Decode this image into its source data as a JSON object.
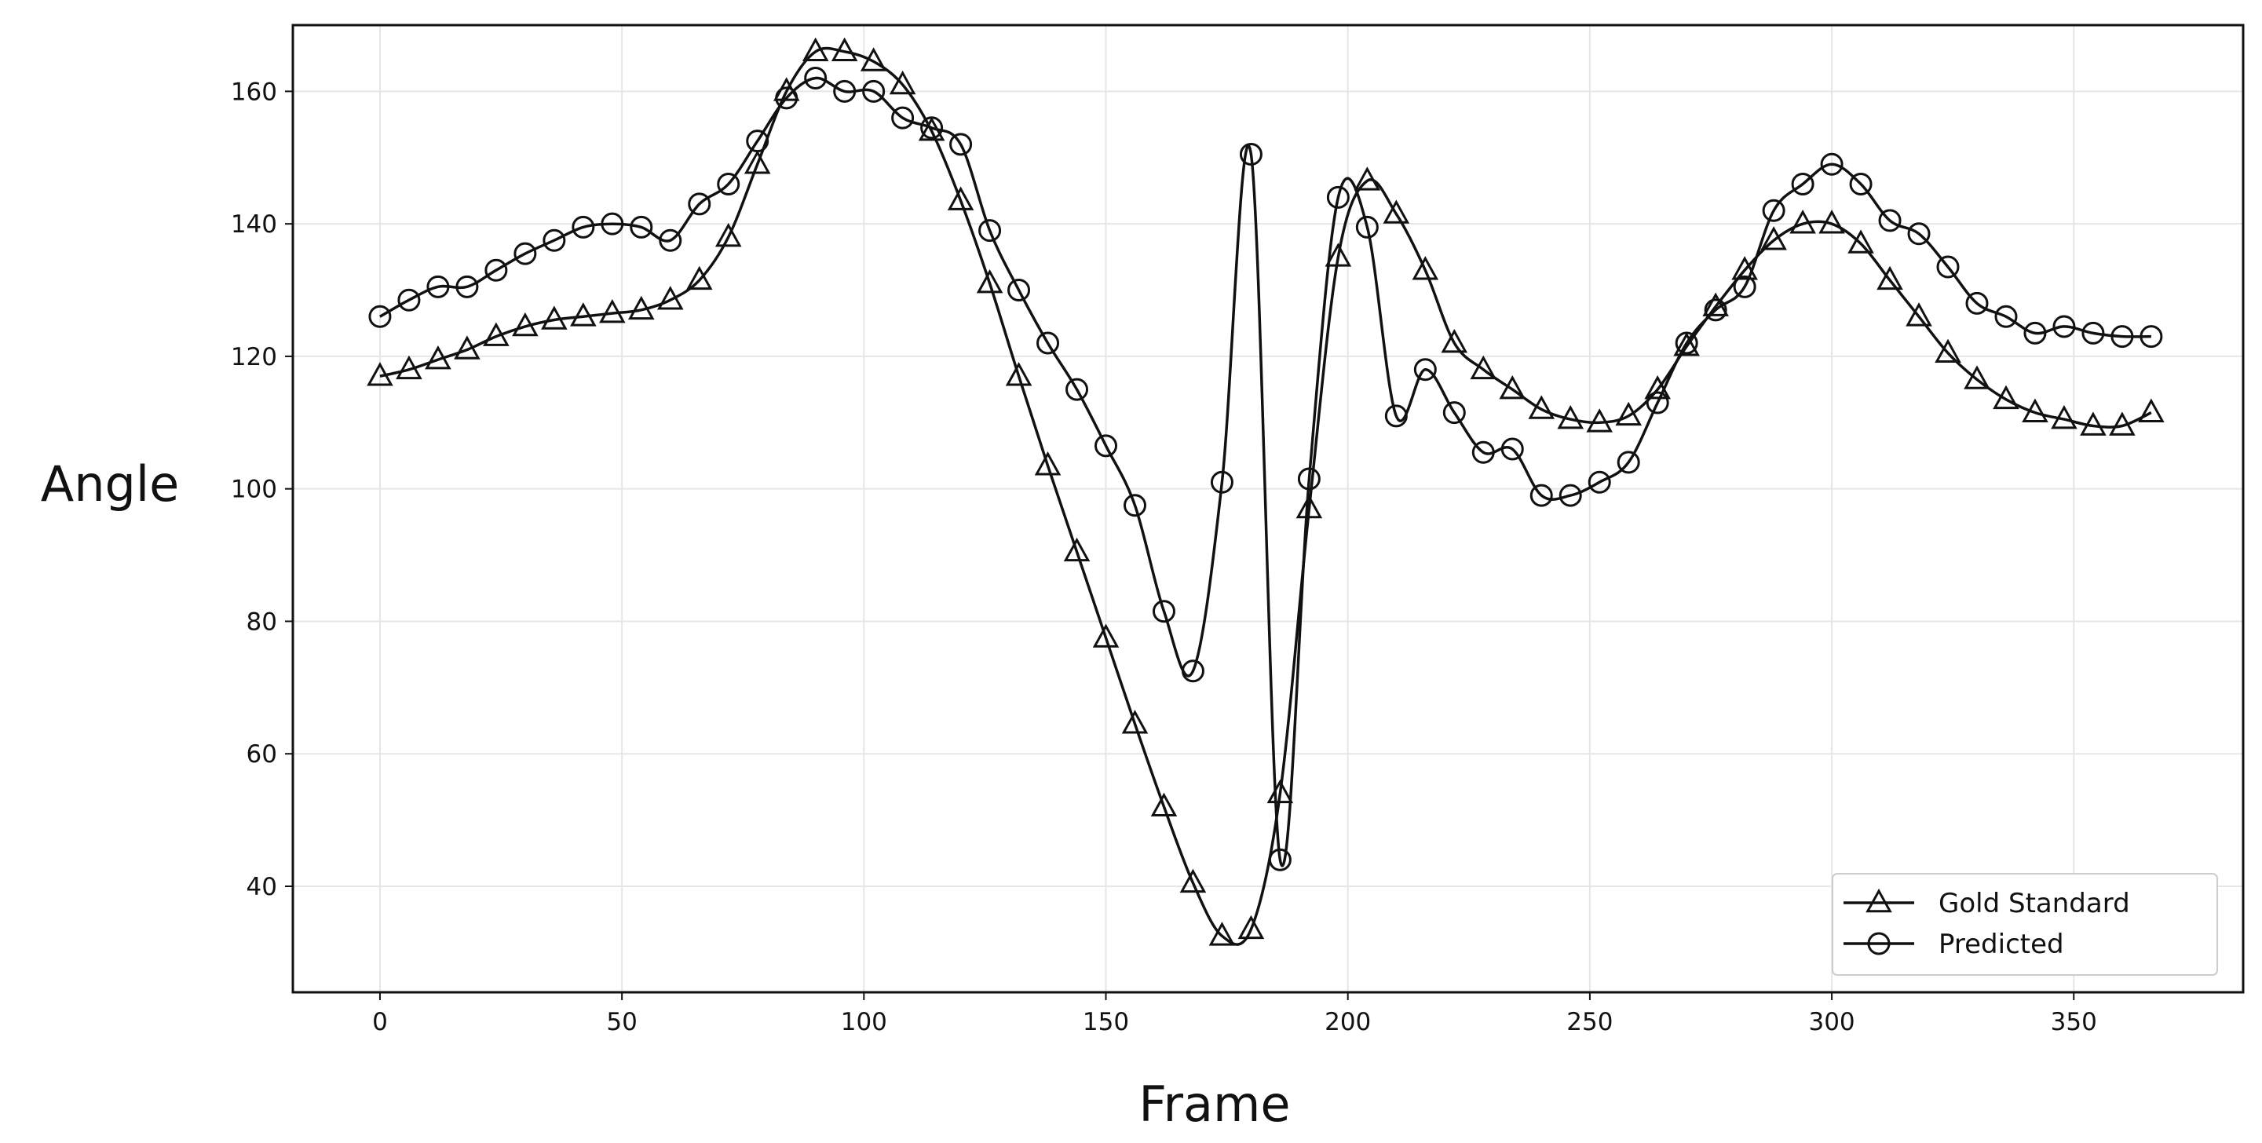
{
  "chart_data": {
    "type": "line",
    "title": "",
    "xlabel": "Frame",
    "ylabel": "Angle",
    "xlim": [
      -18,
      385
    ],
    "ylim": [
      24,
      170
    ],
    "x_ticks": [
      0,
      50,
      100,
      150,
      200,
      250,
      300,
      350
    ],
    "y_ticks": [
      40,
      60,
      80,
      100,
      120,
      140,
      160
    ],
    "grid": true,
    "legend_position": "lower-right",
    "colors": {
      "line": "#111111",
      "grid": "#e6e6e6",
      "axis": "#111111",
      "background": "#ffffff"
    },
    "series": [
      {
        "name": "Gold Standard",
        "marker": "triangle",
        "x": [
          0,
          6,
          12,
          18,
          24,
          30,
          36,
          42,
          48,
          54,
          60,
          66,
          72,
          78,
          84,
          90,
          96,
          102,
          108,
          114,
          120,
          126,
          132,
          138,
          144,
          150,
          156,
          162,
          168,
          174,
          180,
          186,
          192,
          198,
          204,
          210,
          216,
          222,
          228,
          234,
          240,
          246,
          252,
          258,
          264,
          270,
          276,
          282,
          288,
          294,
          300,
          306,
          312,
          318,
          324,
          330,
          336,
          342,
          348,
          354,
          360,
          366
        ],
        "y": [
          117,
          118,
          119.5,
          121,
          123,
          124.5,
          125.5,
          126,
          126.5,
          127,
          128.5,
          131.5,
          138,
          149,
          160,
          166,
          166,
          164.5,
          161,
          154,
          143.5,
          131,
          117,
          103.5,
          90.5,
          77.5,
          64.5,
          52,
          40.5,
          32.5,
          33.5,
          54,
          97,
          135,
          146.5,
          141.5,
          133,
          122,
          118,
          115,
          112,
          110.5,
          110,
          111,
          115,
          121.5,
          127.5,
          133,
          137.5,
          140,
          140,
          137,
          131.5,
          126,
          120.5,
          116.5,
          113.5,
          111.5,
          110.5,
          109.5,
          109.5,
          111.5
        ]
      },
      {
        "name": "Predicted",
        "marker": "circle",
        "x": [
          0,
          6,
          12,
          18,
          24,
          30,
          36,
          42,
          48,
          54,
          60,
          66,
          72,
          78,
          84,
          90,
          96,
          102,
          108,
          114,
          120,
          126,
          132,
          138,
          144,
          150,
          156,
          162,
          168,
          174,
          180,
          186,
          192,
          198,
          204,
          210,
          216,
          222,
          228,
          234,
          240,
          246,
          252,
          258,
          264,
          270,
          276,
          282,
          288,
          294,
          300,
          306,
          312,
          318,
          324,
          330,
          336,
          342,
          348,
          354,
          360,
          366
        ],
        "y": [
          126,
          128.5,
          130.5,
          130.5,
          133,
          135.5,
          137.5,
          139.5,
          140,
          139.5,
          137.5,
          143,
          146,
          152.5,
          159,
          162,
          160,
          160,
          156,
          154.5,
          152,
          139,
          130,
          122,
          115,
          106.5,
          97.5,
          81.5,
          72.5,
          101,
          150.5,
          44,
          101.5,
          144,
          139.5,
          111,
          118,
          111.5,
          105.5,
          106,
          99,
          99,
          101,
          104,
          113,
          122,
          127,
          130.5,
          142,
          146,
          149,
          146,
          140.5,
          138.5,
          133.5,
          128,
          126,
          123.5,
          124.5,
          123.5,
          123,
          123
        ]
      }
    ]
  }
}
